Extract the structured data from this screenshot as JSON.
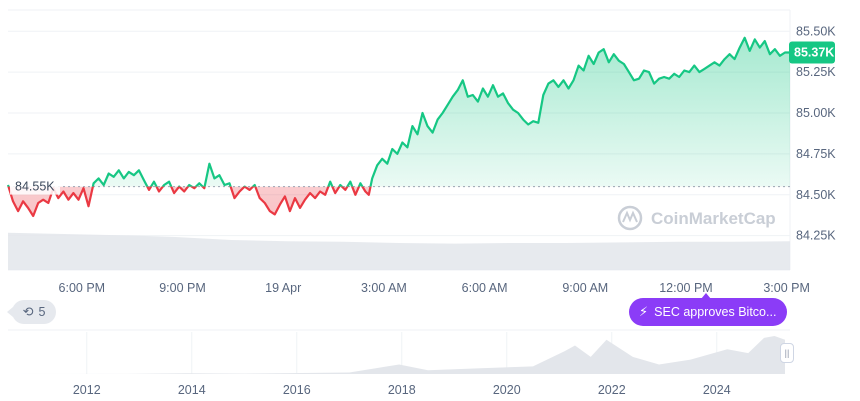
{
  "chart_data": {
    "type": "line",
    "reference_price": 84550,
    "reference_label": "84.55K",
    "current_price_label": "85.37K",
    "ylim": [
      84040,
      85630
    ],
    "y_ticks": [
      {
        "value": 85500,
        "label": "85.50K"
      },
      {
        "value": 85250,
        "label": "85.25K"
      },
      {
        "value": 85000,
        "label": "85.00K"
      },
      {
        "value": 84750,
        "label": "84.75K"
      },
      {
        "value": 84500,
        "label": "84.50K"
      },
      {
        "value": 84250,
        "label": "84.25K"
      }
    ],
    "x_ticks": [
      "6:00 PM",
      "9:00 PM",
      "19 Apr",
      "3:00 AM",
      "6:00 AM",
      "9:00 AM",
      "12:00 PM",
      "3:00 PM"
    ],
    "x_tick_hours": [
      0,
      3,
      6,
      9,
      12,
      15,
      18,
      21
    ],
    "xlim_hours": [
      -2.2,
      21.1
    ],
    "series": [
      {
        "points": [
          [
            -2.2,
            84560
          ],
          [
            -2.05,
            84460
          ],
          [
            -1.9,
            84400
          ],
          [
            -1.75,
            84460
          ],
          [
            -1.6,
            84420
          ],
          [
            -1.45,
            84370
          ],
          [
            -1.3,
            84450
          ],
          [
            -1.15,
            84470
          ],
          [
            -1.0,
            84450
          ],
          [
            -0.85,
            84540
          ],
          [
            -0.7,
            84480
          ],
          [
            -0.55,
            84520
          ],
          [
            -0.4,
            84470
          ],
          [
            -0.25,
            84510
          ],
          [
            -0.1,
            84470
          ],
          [
            0.05,
            84540
          ],
          [
            0.2,
            84430
          ],
          [
            0.35,
            84570
          ],
          [
            0.5,
            84600
          ],
          [
            0.65,
            84560
          ],
          [
            0.8,
            84630
          ],
          [
            0.95,
            84610
          ],
          [
            1.1,
            84650
          ],
          [
            1.25,
            84600
          ],
          [
            1.4,
            84640
          ],
          [
            1.55,
            84620
          ],
          [
            1.7,
            84650
          ],
          [
            1.85,
            84590
          ],
          [
            2.0,
            84530
          ],
          [
            2.15,
            84580
          ],
          [
            2.3,
            84520
          ],
          [
            2.45,
            84560
          ],
          [
            2.6,
            84580
          ],
          [
            2.75,
            84510
          ],
          [
            2.9,
            84550
          ],
          [
            3.05,
            84520
          ],
          [
            3.2,
            84560
          ],
          [
            3.35,
            84540
          ],
          [
            3.5,
            84570
          ],
          [
            3.65,
            84540
          ],
          [
            3.8,
            84690
          ],
          [
            3.95,
            84600
          ],
          [
            4.1,
            84620
          ],
          [
            4.25,
            84560
          ],
          [
            4.4,
            84570
          ],
          [
            4.55,
            84480
          ],
          [
            4.7,
            84520
          ],
          [
            4.85,
            84550
          ],
          [
            5.0,
            84530
          ],
          [
            5.15,
            84560
          ],
          [
            5.3,
            84480
          ],
          [
            5.45,
            84450
          ],
          [
            5.6,
            84400
          ],
          [
            5.75,
            84380
          ],
          [
            5.9,
            84440
          ],
          [
            6.05,
            84490
          ],
          [
            6.2,
            84400
          ],
          [
            6.35,
            84480
          ],
          [
            6.5,
            84420
          ],
          [
            6.65,
            84470
          ],
          [
            6.8,
            84510
          ],
          [
            6.95,
            84480
          ],
          [
            7.1,
            84520
          ],
          [
            7.25,
            84500
          ],
          [
            7.4,
            84580
          ],
          [
            7.55,
            84510
          ],
          [
            7.7,
            84560
          ],
          [
            7.85,
            84530
          ],
          [
            8.0,
            84580
          ],
          [
            8.15,
            84500
          ],
          [
            8.3,
            84570
          ],
          [
            8.45,
            84520
          ],
          [
            8.55,
            84500
          ],
          [
            8.65,
            84600
          ],
          [
            8.8,
            84680
          ],
          [
            8.95,
            84720
          ],
          [
            9.1,
            84690
          ],
          [
            9.25,
            84780
          ],
          [
            9.4,
            84750
          ],
          [
            9.55,
            84820
          ],
          [
            9.7,
            84790
          ],
          [
            9.85,
            84920
          ],
          [
            10.0,
            84870
          ],
          [
            10.15,
            85000
          ],
          [
            10.3,
            84920
          ],
          [
            10.45,
            84880
          ],
          [
            10.6,
            84960
          ],
          [
            10.75,
            85000
          ],
          [
            10.9,
            85050
          ],
          [
            11.05,
            85100
          ],
          [
            11.2,
            85140
          ],
          [
            11.35,
            85200
          ],
          [
            11.5,
            85100
          ],
          [
            11.65,
            85110
          ],
          [
            11.8,
            85070
          ],
          [
            11.95,
            85150
          ],
          [
            12.1,
            85100
          ],
          [
            12.25,
            85170
          ],
          [
            12.4,
            85100
          ],
          [
            12.55,
            85120
          ],
          [
            12.7,
            85060
          ],
          [
            12.85,
            85020
          ],
          [
            13.0,
            85000
          ],
          [
            13.15,
            84960
          ],
          [
            13.3,
            84930
          ],
          [
            13.45,
            84950
          ],
          [
            13.6,
            84940
          ],
          [
            13.75,
            85110
          ],
          [
            13.9,
            85180
          ],
          [
            14.05,
            85200
          ],
          [
            14.2,
            85160
          ],
          [
            14.35,
            85200
          ],
          [
            14.5,
            85150
          ],
          [
            14.65,
            85200
          ],
          [
            14.8,
            85290
          ],
          [
            14.95,
            85260
          ],
          [
            15.1,
            85350
          ],
          [
            15.25,
            85300
          ],
          [
            15.4,
            85370
          ],
          [
            15.55,
            85390
          ],
          [
            15.7,
            85310
          ],
          [
            15.85,
            85360
          ],
          [
            16.0,
            85320
          ],
          [
            16.15,
            85300
          ],
          [
            16.3,
            85250
          ],
          [
            16.45,
            85200
          ],
          [
            16.6,
            85210
          ],
          [
            16.75,
            85260
          ],
          [
            16.9,
            85250
          ],
          [
            17.05,
            85180
          ],
          [
            17.2,
            85210
          ],
          [
            17.35,
            85220
          ],
          [
            17.5,
            85210
          ],
          [
            17.65,
            85240
          ],
          [
            17.8,
            85220
          ],
          [
            17.95,
            85260
          ],
          [
            18.1,
            85250
          ],
          [
            18.25,
            85290
          ],
          [
            18.4,
            85250
          ],
          [
            18.55,
            85270
          ],
          [
            18.7,
            85290
          ],
          [
            18.85,
            85310
          ],
          [
            19.0,
            85290
          ],
          [
            19.15,
            85330
          ],
          [
            19.3,
            85360
          ],
          [
            19.45,
            85330
          ],
          [
            19.6,
            85400
          ],
          [
            19.75,
            85460
          ],
          [
            19.9,
            85380
          ],
          [
            20.05,
            85450
          ],
          [
            20.2,
            85400
          ],
          [
            20.35,
            85440
          ],
          [
            20.5,
            85360
          ],
          [
            20.65,
            85390
          ],
          [
            20.8,
            85350
          ],
          [
            20.95,
            85370
          ],
          [
            21.1,
            85370
          ]
        ]
      }
    ],
    "volume_note_values": [
      0.62,
      0.6,
      0.58,
      0.55,
      0.5,
      0.48,
      0.47,
      0.45,
      0.44,
      0.45,
      0.45,
      0.46,
      0.47,
      0.47,
      0.48
    ],
    "navigator": {
      "x_ticks": [
        "2012",
        "2014",
        "2016",
        "2018",
        "2020",
        "2022",
        "2024"
      ],
      "x_tick_years": [
        2012,
        2014,
        2016,
        2018,
        2020,
        2022,
        2024
      ],
      "xlim_years": [
        2010.5,
        2025.3
      ],
      "points": [
        [
          2010.5,
          0
        ],
        [
          2013,
          0.005
        ],
        [
          2013.9,
          0.02
        ],
        [
          2015,
          0.01
        ],
        [
          2017,
          0.04
        ],
        [
          2017.95,
          0.25
        ],
        [
          2018.5,
          0.1
        ],
        [
          2019.5,
          0.15
        ],
        [
          2020.5,
          0.2
        ],
        [
          2021.1,
          0.6
        ],
        [
          2021.3,
          0.75
        ],
        [
          2021.6,
          0.45
        ],
        [
          2021.9,
          0.9
        ],
        [
          2022.4,
          0.45
        ],
        [
          2022.9,
          0.25
        ],
        [
          2023.5,
          0.38
        ],
        [
          2024.2,
          0.65
        ],
        [
          2024.6,
          0.55
        ],
        [
          2024.9,
          0.95
        ],
        [
          2025.1,
          1.0
        ],
        [
          2025.3,
          0.9
        ]
      ]
    }
  },
  "watermark": {
    "text": "CoinMarketCap"
  },
  "event": {
    "label": "SEC approves Bitco..."
  },
  "history": {
    "count": "5"
  },
  "colors": {
    "up": "#16c784",
    "down": "#ea3943",
    "grid": "#eff2f5",
    "tick": "#58667e"
  }
}
